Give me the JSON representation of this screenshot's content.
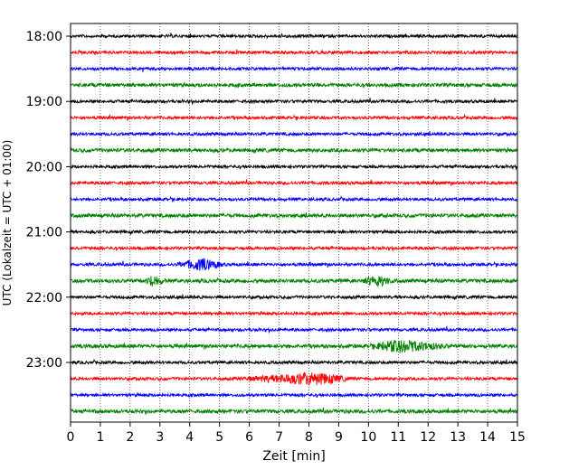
{
  "chart_data": {
    "type": "line",
    "subtype": "helicorder",
    "xlabel": "Zeit  [min]",
    "ylabel": "UTC (Lokalzeit = UTC + 01:00)",
    "xlim": [
      0,
      15
    ],
    "xticks": [
      "0",
      "1",
      "2",
      "3",
      "4",
      "5",
      "6",
      "7",
      "8",
      "9",
      "10",
      "11",
      "12",
      "13",
      "14",
      "15"
    ],
    "yticks": [
      "18:00",
      "19:00",
      "20:00",
      "21:00",
      "22:00",
      "23:00"
    ],
    "grid": "vertical-dotted",
    "trace_interval_min": 15,
    "trace_colors": [
      "#000000",
      "#ff0000",
      "#0000ff",
      "#008000"
    ],
    "traces": [
      {
        "start": "18:00",
        "color": "#000000"
      },
      {
        "start": "18:15",
        "color": "#ff0000"
      },
      {
        "start": "18:30",
        "color": "#0000ff"
      },
      {
        "start": "18:45",
        "color": "#008000"
      },
      {
        "start": "19:00",
        "color": "#000000"
      },
      {
        "start": "19:15",
        "color": "#ff0000"
      },
      {
        "start": "19:30",
        "color": "#0000ff"
      },
      {
        "start": "19:45",
        "color": "#008000"
      },
      {
        "start": "20:00",
        "color": "#000000"
      },
      {
        "start": "20:15",
        "color": "#ff0000"
      },
      {
        "start": "20:30",
        "color": "#0000ff"
      },
      {
        "start": "20:45",
        "color": "#008000"
      },
      {
        "start": "21:00",
        "color": "#000000"
      },
      {
        "start": "21:15",
        "color": "#ff0000"
      },
      {
        "start": "21:30",
        "color": "#0000ff"
      },
      {
        "start": "21:45",
        "color": "#008000"
      },
      {
        "start": "22:00",
        "color": "#000000"
      },
      {
        "start": "22:15",
        "color": "#ff0000"
      },
      {
        "start": "22:30",
        "color": "#0000ff"
      },
      {
        "start": "22:45",
        "color": "#008000"
      },
      {
        "start": "23:00",
        "color": "#000000"
      },
      {
        "start": "23:15",
        "color": "#ff0000"
      },
      {
        "start": "23:30",
        "color": "#0000ff"
      },
      {
        "start": "23:45",
        "color": "#008000"
      }
    ],
    "events": [
      {
        "trace": "23:15",
        "start_min": 5.5,
        "end_min": 9.5,
        "peak_min": 8.2
      },
      {
        "trace": "22:45",
        "start_min": 10.0,
        "end_min": 12.8,
        "peak_min": 11.0
      },
      {
        "trace": "21:30",
        "start_min": 3.5,
        "end_min": 5.2,
        "peak_min": 4.4
      },
      {
        "trace": "21:45",
        "start_min": 2.5,
        "end_min": 3.2,
        "peak_min": 2.8
      },
      {
        "trace": "21:45",
        "start_min": 9.8,
        "end_min": 10.8,
        "peak_min": 10.3
      }
    ]
  }
}
